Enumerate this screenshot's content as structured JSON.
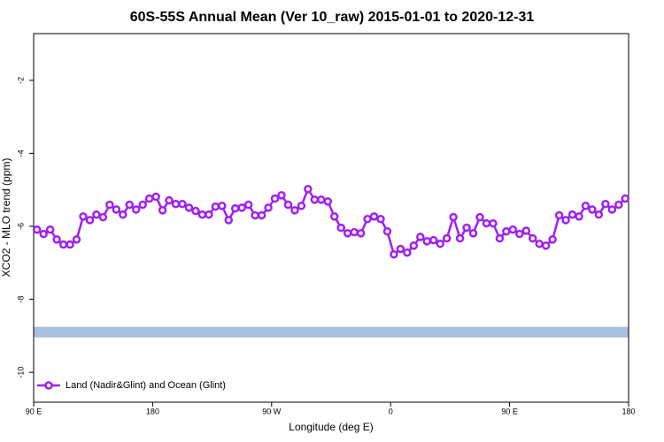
{
  "chart_data": {
    "type": "line",
    "title": "60S-55S Annual Mean (Ver 10_raw)   2015-01-01 to 2020-12-31",
    "x_label": "Longitude (deg E)",
    "y_label": "XCO2 - MLO trend (ppm)",
    "x": [
      92.5,
      97.5,
      102.5,
      107.5,
      112.5,
      117.5,
      122.5,
      127.5,
      132.5,
      137.5,
      142.5,
      147.5,
      152.5,
      157.5,
      162.5,
      167.5,
      172.5,
      177.5,
      182.5,
      187.5,
      192.5,
      197.5,
      202.5,
      207.5,
      212.5,
      217.5,
      222.5,
      227.5,
      232.5,
      237.5,
      242.5,
      247.5,
      252.5,
      257.5,
      262.5,
      267.5,
      272.5,
      277.5,
      282.5,
      287.5,
      292.5,
      297.5,
      302.5,
      307.5,
      312.5,
      317.5,
      322.5,
      327.5,
      332.5,
      337.5,
      342.5,
      347.5,
      352.5,
      357.5,
      362.5,
      367.5,
      372.5,
      377.5,
      382.5,
      387.5,
      392.5,
      397.5,
      402.5,
      407.5,
      412.5,
      417.5,
      422.5,
      427.5,
      432.5,
      437.5,
      442.5,
      447.5,
      452.5,
      457.5,
      462.5,
      467.5,
      472.5,
      477.5,
      482.5,
      487.5,
      492.5,
      497.5,
      502.5,
      507.5,
      512.5,
      517.5,
      522.5,
      527.5,
      532.5,
      537.5
    ],
    "series": [
      {
        "name": "Land (Nadir&Glint) and Ocean (Glint)",
        "color": "#a020f0",
        "values": [
          -6.09,
          -6.21,
          -6.09,
          -6.36,
          -6.5,
          -6.5,
          -6.36,
          -5.73,
          -5.83,
          -5.68,
          -5.75,
          -5.41,
          -5.54,
          -5.68,
          -5.41,
          -5.54,
          -5.41,
          -5.24,
          -5.19,
          -5.56,
          -5.29,
          -5.39,
          -5.39,
          -5.49,
          -5.58,
          -5.68,
          -5.68,
          -5.46,
          -5.44,
          -5.83,
          -5.51,
          -5.49,
          -5.41,
          -5.7,
          -5.7,
          -5.49,
          -5.24,
          -5.15,
          -5.41,
          -5.56,
          -5.44,
          -4.98,
          -5.27,
          -5.27,
          -5.32,
          -5.73,
          -6.04,
          -6.19,
          -6.16,
          -6.19,
          -5.8,
          -5.73,
          -5.8,
          -6.14,
          -6.77,
          -6.62,
          -6.72,
          -6.53,
          -6.29,
          -6.41,
          -6.38,
          -6.48,
          -6.33,
          -5.75,
          -6.33,
          -6.04,
          -6.19,
          -5.75,
          -5.92,
          -5.92,
          -6.33,
          -6.14,
          -6.09,
          -6.21,
          -6.12,
          -6.33,
          -6.48,
          -6.53,
          -6.36,
          -5.7,
          -5.83,
          -5.68,
          -5.73,
          -5.44,
          -5.54,
          -5.68,
          -5.39,
          -5.54,
          -5.41,
          -5.24
        ]
      }
    ],
    "band": {
      "value": -8.9,
      "color": "#a8bfe0"
    },
    "xlim": [
      90,
      540
    ],
    "xticks": [
      {
        "value": 90,
        "label": "90 E"
      },
      {
        "value": 180,
        "label": "180"
      },
      {
        "value": 270,
        "label": "90 W"
      },
      {
        "value": 360,
        "label": "0"
      },
      {
        "value": 450,
        "label": "90 E"
      },
      {
        "value": 540,
        "label": "180"
      }
    ],
    "ylim": [
      -10.82,
      -0.72
    ],
    "yticks": [
      -2,
      -4,
      -6,
      -8,
      -10
    ],
    "legend": "bottom-left"
  }
}
